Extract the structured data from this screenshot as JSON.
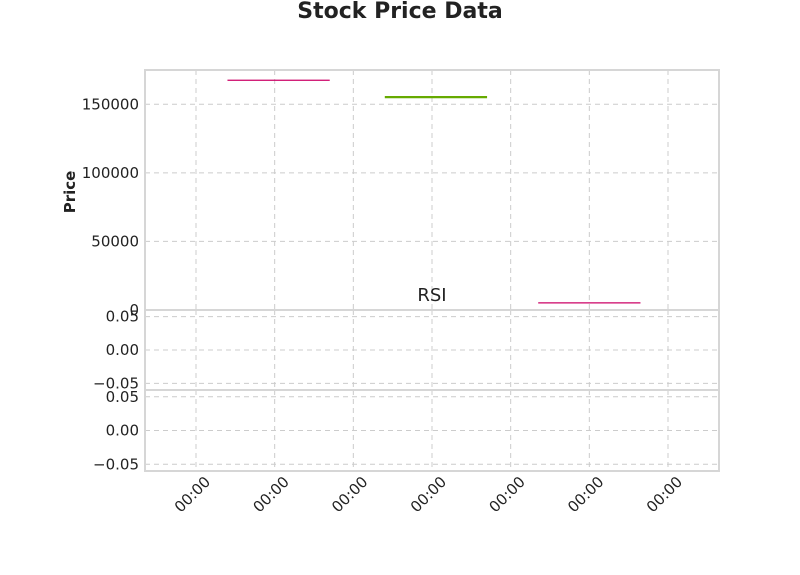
{
  "chart_data": [
    {
      "type": "line",
      "panel": "price",
      "title": "Stock Price Data",
      "ylabel": "Price",
      "ylim": [
        0,
        175000
      ],
      "y_ticks": [
        0,
        50000,
        100000,
        150000
      ],
      "y_tick_labels": [
        "0",
        "50000",
        "100000",
        "150000"
      ],
      "x_tick_labels": [
        "00:00",
        "00:00",
        "00:00",
        "00:00",
        "00:00",
        "00:00",
        "00:00"
      ],
      "grid": true,
      "series": [
        {
          "color": "#cc0066",
          "x_start": 0.4,
          "x_end": 1.7,
          "y": 167500
        },
        {
          "color": "#66aa00",
          "x_start": 2.4,
          "x_end": 3.7,
          "y": 155200
        },
        {
          "color": "#cc0066",
          "x_start": 4.35,
          "x_end": 5.65,
          "y": 5200
        }
      ]
    },
    {
      "type": "line",
      "panel": "rsi",
      "title": "RSI",
      "ylim": [
        -0.06,
        0.06
      ],
      "y_ticks": [
        0.05,
        0.0,
        -0.05
      ],
      "y_tick_labels": [
        "0.05",
        "0.00",
        "−0.05"
      ],
      "grid": true,
      "series": []
    },
    {
      "type": "line",
      "panel": "third",
      "title": "",
      "ylim": [
        -0.06,
        0.06
      ],
      "y_ticks": [
        0.05,
        0.0,
        -0.05
      ],
      "y_tick_labels": [
        "0.05",
        "0.00",
        "−0.05"
      ],
      "grid": true,
      "series": []
    }
  ],
  "colors": {
    "grid": "#cccccc",
    "frame": "#d6d6d6",
    "text": "#222222"
  }
}
